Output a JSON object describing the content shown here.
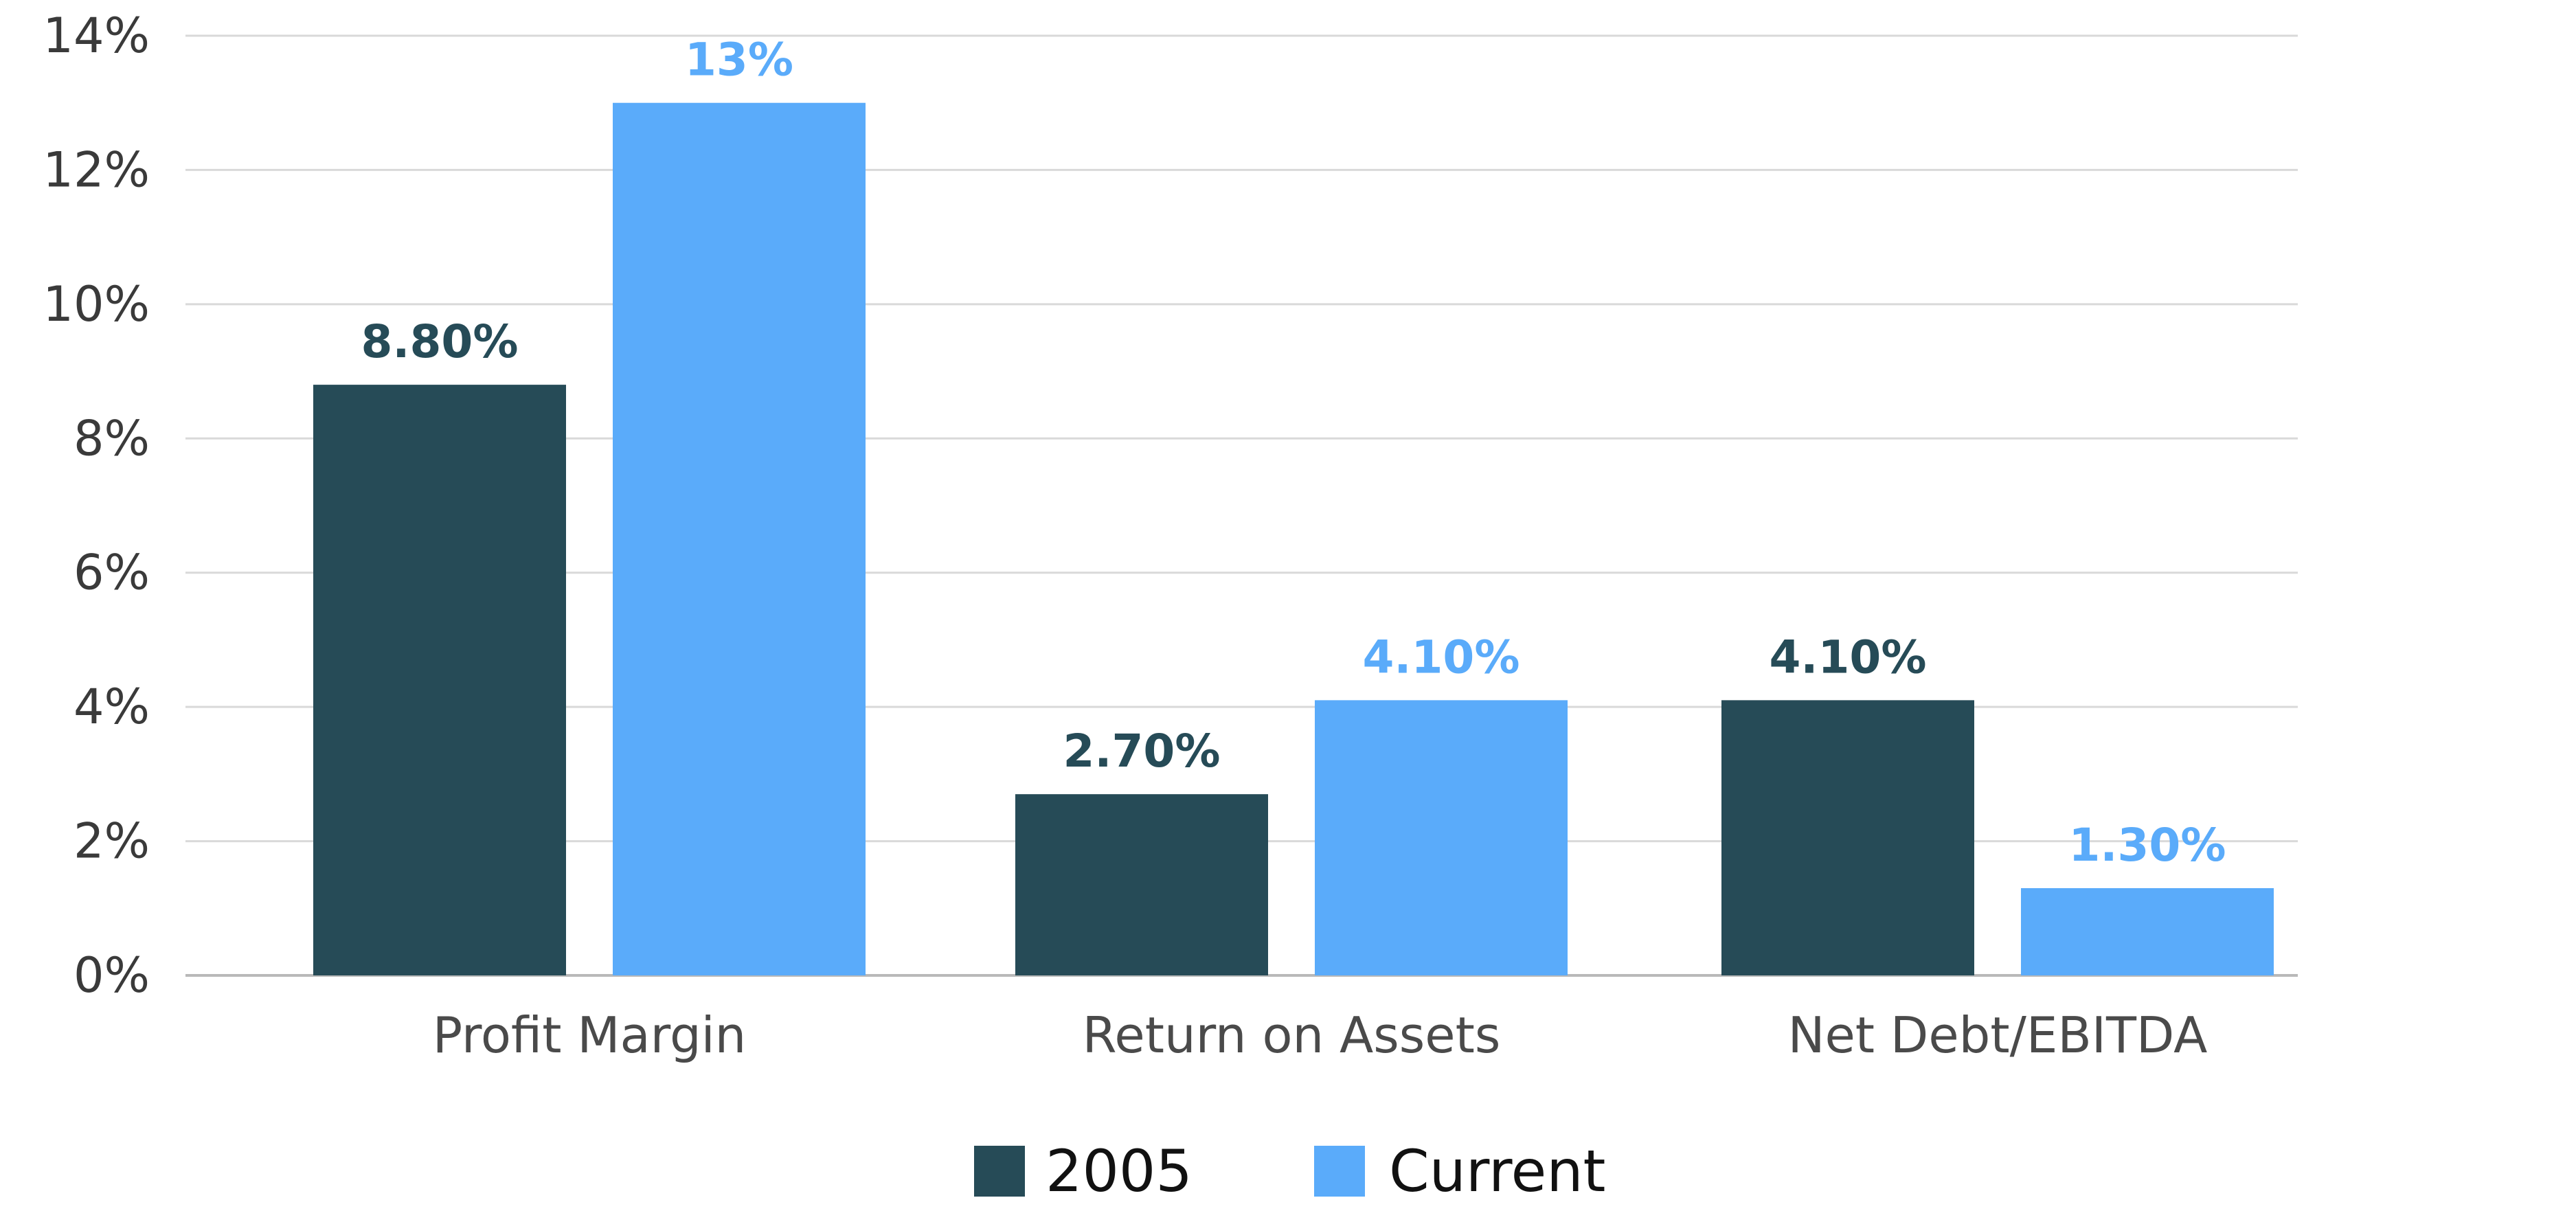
{
  "chart_data": {
    "type": "bar",
    "title": "",
    "xlabel": "",
    "ylabel": "",
    "categories": [
      "Profit Margin",
      "Return on Assets",
      "Net Debt/EBITDA"
    ],
    "series": [
      {
        "name": "2005",
        "color": "#264b57",
        "values": [
          8.8,
          2.7,
          4.1
        ],
        "labels": [
          "8.80%",
          "2.70%",
          "4.10%"
        ]
      },
      {
        "name": "Current",
        "color": "#5aabfa",
        "values": [
          13,
          4.1,
          1.3
        ],
        "labels": [
          "13%",
          "4.10%",
          "1.30%"
        ]
      }
    ],
    "ylim": [
      0,
      14
    ],
    "yticks": [
      0,
      2,
      4,
      6,
      8,
      10,
      12,
      14
    ],
    "ytick_labels": [
      "0%",
      "2%",
      "4%",
      "6%",
      "8%",
      "10%",
      "12%",
      "14%"
    ],
    "grid": true,
    "legend_position": "bottom-center"
  }
}
